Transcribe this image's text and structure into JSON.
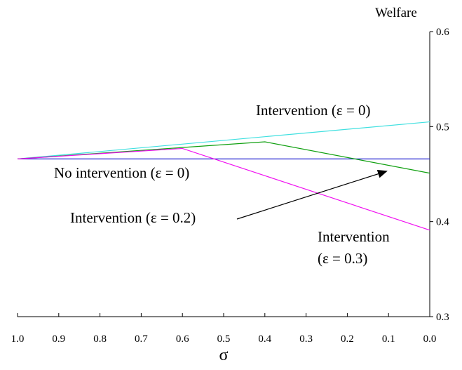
{
  "chart_data": {
    "type": "line",
    "title": "",
    "xlabel": "σ",
    "ylabel": "Welfare",
    "xlim": [
      1.0,
      0.0
    ],
    "ylim": [
      0.3,
      0.6
    ],
    "x_tick_labels": [
      "1.0",
      "0.9",
      "0.8",
      "0.7",
      "0.6",
      "0.5",
      "0.4",
      "0.3",
      "0.2",
      "0.1",
      "0.0"
    ],
    "y_tick_labels": [
      "0.3",
      "0.4",
      "0.5",
      "0.6"
    ],
    "grid": false,
    "legend": "none",
    "series": [
      {
        "name": "Intervention (ε = 0)",
        "color": "#40e0e0",
        "x": [
          1.0,
          0.0
        ],
        "y": [
          0.466,
          0.505
        ]
      },
      {
        "name": "No intervention (ε = 0)",
        "color": "#2020d0",
        "x": [
          1.0,
          0.0
        ],
        "y": [
          0.466,
          0.466
        ]
      },
      {
        "name": "Intervention (ε = 0.2)",
        "color": "#10a010",
        "x": [
          1.0,
          0.4,
          0.0
        ],
        "y": [
          0.466,
          0.484,
          0.451
        ]
      },
      {
        "name": "Intervention (ε = 0.3)",
        "color": "#f010f0",
        "x": [
          1.0,
          0.6,
          0.0
        ],
        "y": [
          0.466,
          0.477,
          0.391
        ]
      }
    ],
    "annotations": [
      {
        "id": "eps0",
        "lines": [
          "Intervention (ε = 0)"
        ]
      },
      {
        "id": "noint",
        "lines": [
          "No intervention (ε = 0)"
        ]
      },
      {
        "id": "eps02",
        "lines": [
          "Intervention (ε = 0.2)"
        ]
      },
      {
        "id": "eps03",
        "lines": [
          "Intervention",
          "(ε = 0.3)"
        ]
      }
    ]
  }
}
